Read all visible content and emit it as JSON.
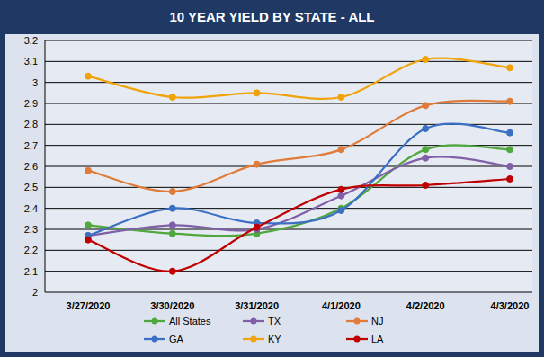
{
  "chart_data": {
    "type": "line",
    "title": "10 YEAR YIELD BY STATE - ALL",
    "categories": [
      "3/27/2020",
      "3/30/2020",
      "3/31/2020",
      "4/1/2020",
      "4/2/2020",
      "4/3/2020"
    ],
    "series": [
      {
        "name": "All States",
        "color": "#4fa83d",
        "values": [
          2.32,
          2.28,
          2.28,
          2.4,
          2.68,
          2.68
        ]
      },
      {
        "name": "TX",
        "color": "#7f5fa8",
        "values": [
          2.27,
          2.32,
          2.3,
          2.46,
          2.64,
          2.6
        ]
      },
      {
        "name": "NJ",
        "color": "#e07b39",
        "values": [
          2.58,
          2.48,
          2.61,
          2.68,
          2.89,
          2.91
        ]
      },
      {
        "name": "GA",
        "color": "#3a6fc4",
        "values": [
          2.27,
          2.4,
          2.33,
          2.39,
          2.78,
          2.76
        ]
      },
      {
        "name": "KY",
        "color": "#f0a30a",
        "values": [
          3.03,
          2.93,
          2.95,
          2.93,
          3.11,
          3.07
        ]
      },
      {
        "name": "LA",
        "color": "#c00000",
        "values": [
          2.25,
          2.1,
          2.31,
          2.49,
          2.51,
          2.54
        ]
      }
    ],
    "ylim": [
      2,
      3.2
    ],
    "yticks": [
      2,
      2.1,
      2.2,
      2.3,
      2.4,
      2.5,
      2.6,
      2.7,
      2.8,
      2.9,
      3,
      3.1,
      3.2
    ],
    "grid": true,
    "legend": "bottom",
    "marker": "circle",
    "line_style": "smooth"
  }
}
